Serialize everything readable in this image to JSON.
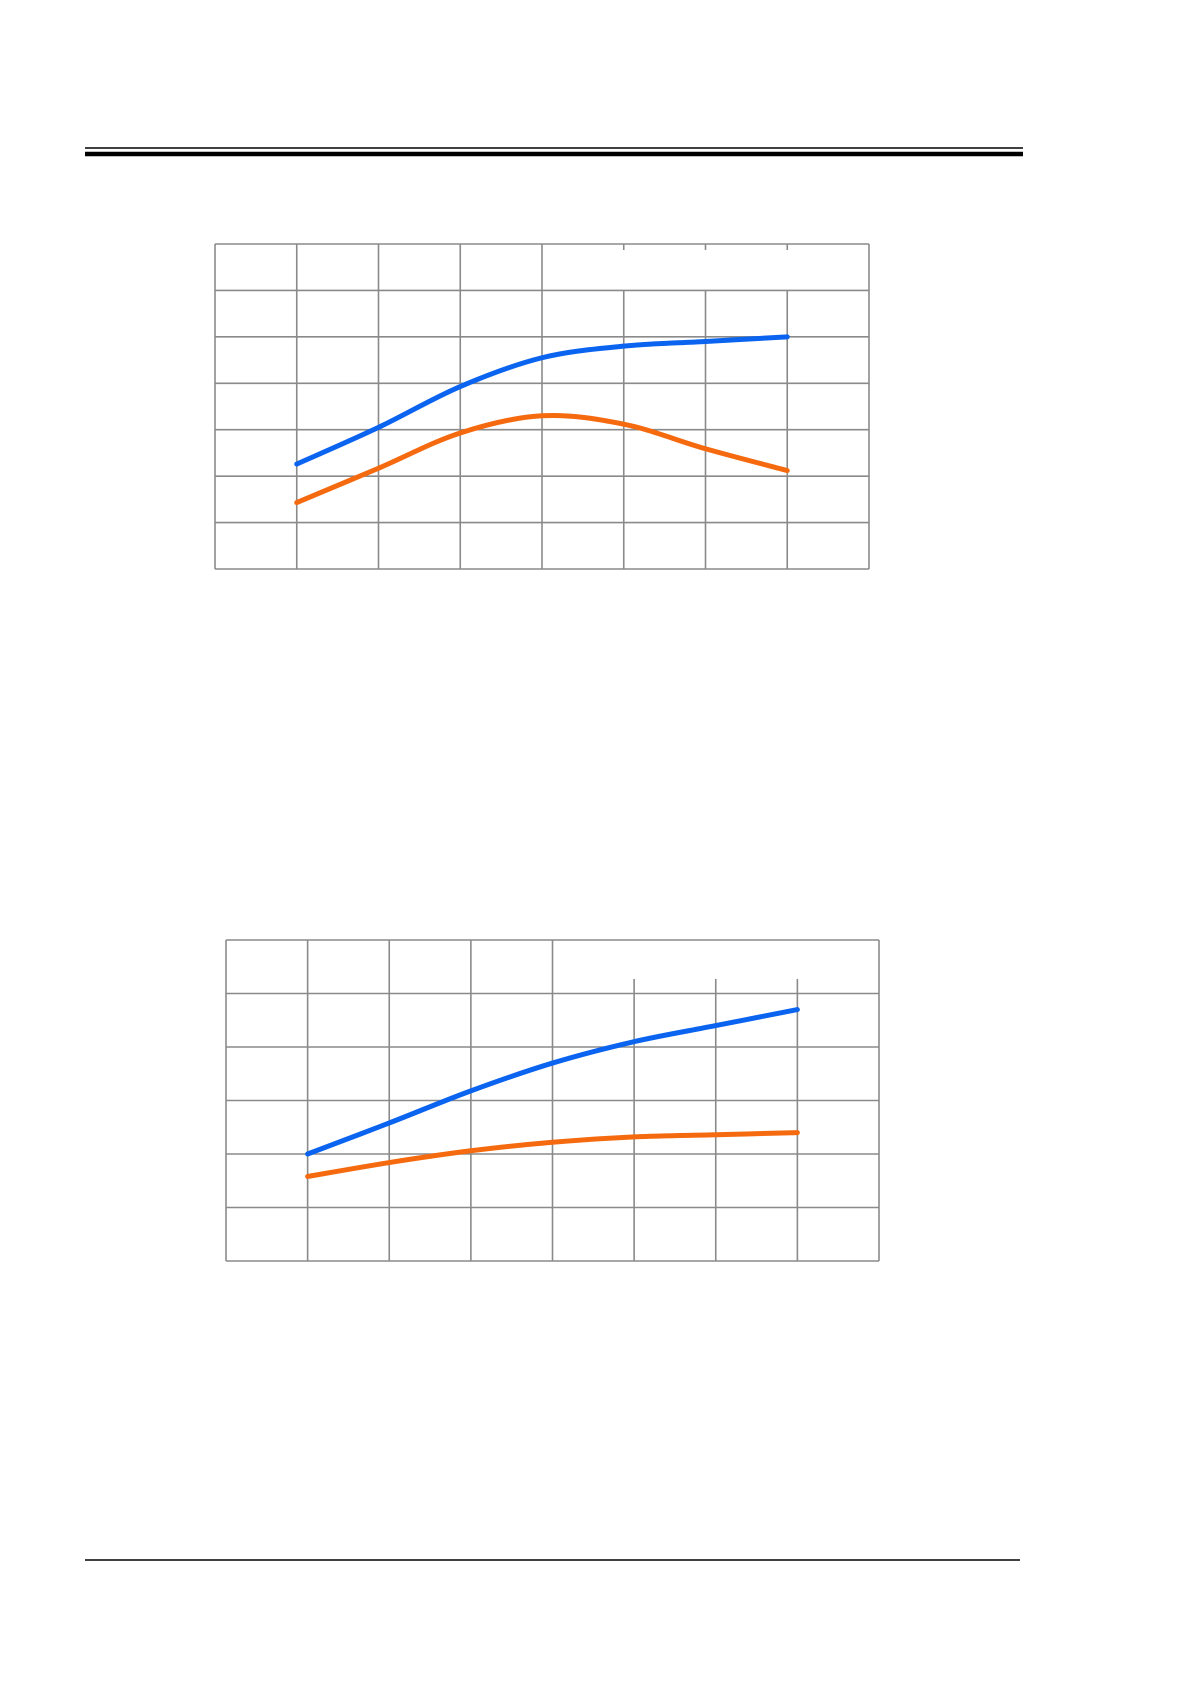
{
  "chart_data": [
    {
      "type": "line",
      "xlim": [
        0,
        8
      ],
      "ylim": [
        0,
        7
      ],
      "xticks": [
        0,
        1,
        2,
        3,
        4,
        5,
        6,
        7,
        8
      ],
      "yticks": [
        0,
        1,
        2,
        3,
        4,
        5,
        6,
        7
      ],
      "grid": true,
      "x": [
        1,
        2,
        3,
        4,
        5,
        6,
        7
      ],
      "series": [
        {
          "color": "#0a64f0",
          "values": [
            2.26,
            3.05,
            3.93,
            4.55,
            4.8,
            4.9,
            5.0
          ]
        },
        {
          "color": "#f56a0f",
          "values": [
            1.43,
            2.17,
            2.93,
            3.3,
            3.12,
            2.59,
            2.12
          ]
        }
      ]
    },
    {
      "type": "line",
      "xlim": [
        0,
        8
      ],
      "ylim": [
        0,
        6
      ],
      "xticks": [
        0,
        1,
        2,
        3,
        4,
        5,
        6,
        7,
        8
      ],
      "yticks": [
        0,
        1,
        2,
        3,
        4,
        5,
        6
      ],
      "grid": true,
      "x": [
        1,
        2,
        3,
        4,
        5,
        6,
        7
      ],
      "series": [
        {
          "color": "#0a64f0",
          "values": [
            2.0,
            2.58,
            3.18,
            3.7,
            4.1,
            4.4,
            4.7
          ]
        },
        {
          "color": "#f56a0f",
          "values": [
            1.58,
            1.84,
            2.06,
            2.22,
            2.32,
            2.36,
            2.4
          ]
        }
      ]
    }
  ]
}
